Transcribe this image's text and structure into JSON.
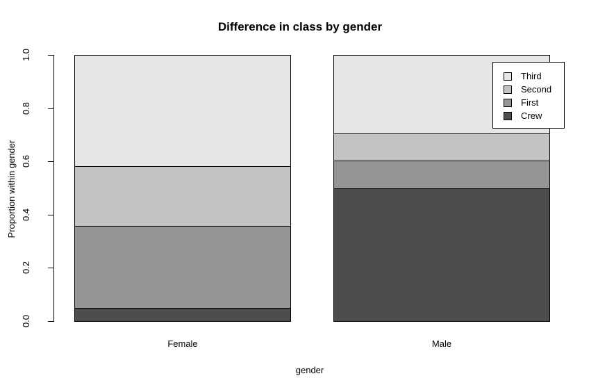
{
  "chart_data": {
    "type": "bar",
    "subtype": "stacked-proportion",
    "title": "Difference in class by gender",
    "xlabel": "gender",
    "ylabel": "Proportion within gender",
    "categories": [
      "Female",
      "Male"
    ],
    "series": [
      {
        "name": "Crew",
        "color": "#4D4D4D",
        "values": [
          0.049,
          0.498
        ]
      },
      {
        "name": "First",
        "color": "#969696",
        "values": [
          0.308,
          0.104
        ]
      },
      {
        "name": "Second",
        "color": "#C3C3C3",
        "values": [
          0.226,
          0.103
        ]
      },
      {
        "name": "Third",
        "color": "#E6E6E6",
        "values": [
          0.417,
          0.295
        ]
      }
    ],
    "ylim": [
      0,
      1
    ],
    "yticks": [
      0.0,
      0.2,
      0.4,
      0.6,
      0.8,
      1.0
    ],
    "ytick_labels": [
      "0.0",
      "0.2",
      "0.4",
      "0.6",
      "0.8",
      "1.0"
    ],
    "legend": {
      "position": "topright",
      "entries": [
        "Third",
        "Second",
        "First",
        "Crew"
      ]
    },
    "grid": false,
    "axis_color": "#000000",
    "background_color": "#FFFFFF"
  }
}
